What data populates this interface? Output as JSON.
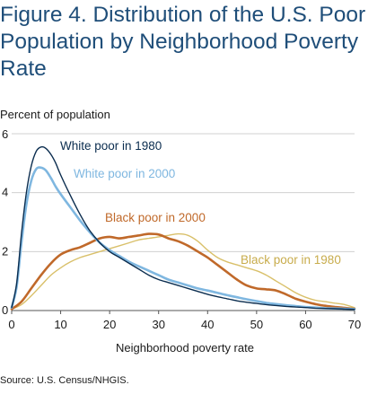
{
  "header": {
    "title": "Figure 4. Distribution of the U.S. Poor Population by Neighborhood Poverty Rate",
    "source": "Source:  U.S. Census/NHGIS."
  },
  "chart_data": {
    "type": "line",
    "title": "Figure 4. Distribution of the U.S. Poor Population by Neighborhood Poverty Rate",
    "xlabel": "Neighborhood poverty rate",
    "ylabel": "Percent of population",
    "xlim": [
      0,
      70
    ],
    "ylim": [
      0,
      6
    ],
    "xticks": [
      0,
      10,
      20,
      30,
      40,
      50,
      60,
      70
    ],
    "yticks": [
      0,
      2,
      4,
      6
    ],
    "grid": "horizontal",
    "series": [
      {
        "name": "White poor in 1980",
        "color": "#0b2d4f",
        "x": [
          0,
          1,
          2,
          3,
          4,
          5,
          6,
          7,
          8,
          9,
          10,
          12,
          14,
          16,
          18,
          20,
          22,
          24,
          26,
          28,
          30,
          32,
          34,
          36,
          38,
          40,
          42,
          44,
          46,
          48,
          50,
          52,
          54,
          56,
          58,
          60,
          62,
          64,
          66,
          68,
          70
        ],
        "values": [
          0.1,
          0.9,
          2.6,
          4.0,
          4.9,
          5.4,
          5.55,
          5.5,
          5.3,
          5.0,
          4.6,
          3.9,
          3.25,
          2.7,
          2.3,
          2.0,
          1.8,
          1.6,
          1.4,
          1.2,
          1.05,
          0.95,
          0.85,
          0.75,
          0.65,
          0.55,
          0.47,
          0.4,
          0.33,
          0.28,
          0.24,
          0.2,
          0.17,
          0.14,
          0.12,
          0.1,
          0.08,
          0.07,
          0.06,
          0.05,
          0.04
        ]
      },
      {
        "name": "White poor in 2000",
        "color": "#7fb7e0",
        "x": [
          0,
          1,
          2,
          3,
          4,
          5,
          6,
          7,
          8,
          9,
          10,
          12,
          14,
          16,
          18,
          20,
          22,
          24,
          26,
          28,
          30,
          32,
          34,
          36,
          38,
          40,
          42,
          44,
          46,
          48,
          50,
          52,
          54,
          56,
          58,
          60,
          62,
          64,
          66,
          68,
          70
        ],
        "values": [
          0.1,
          0.8,
          2.3,
          3.6,
          4.4,
          4.8,
          4.85,
          4.75,
          4.5,
          4.2,
          3.95,
          3.5,
          3.05,
          2.65,
          2.3,
          2.05,
          1.85,
          1.65,
          1.5,
          1.35,
          1.2,
          1.05,
          0.95,
          0.85,
          0.75,
          0.68,
          0.6,
          0.52,
          0.45,
          0.38,
          0.32,
          0.26,
          0.22,
          0.18,
          0.15,
          0.12,
          0.1,
          0.08,
          0.07,
          0.06,
          0.05
        ]
      },
      {
        "name": "Black poor in 2000",
        "color": "#c0692a",
        "x": [
          0,
          2,
          4,
          6,
          8,
          10,
          12,
          14,
          16,
          18,
          20,
          22,
          24,
          26,
          28,
          30,
          32,
          34,
          36,
          38,
          40,
          42,
          44,
          46,
          48,
          50,
          52,
          54,
          56,
          58,
          60,
          62,
          64,
          66,
          68,
          70
        ],
        "values": [
          0.05,
          0.3,
          0.75,
          1.2,
          1.6,
          1.9,
          2.05,
          2.15,
          2.3,
          2.45,
          2.5,
          2.45,
          2.5,
          2.55,
          2.6,
          2.58,
          2.45,
          2.35,
          2.2,
          2.0,
          1.8,
          1.55,
          1.3,
          1.05,
          0.85,
          0.75,
          0.72,
          0.68,
          0.55,
          0.4,
          0.3,
          0.22,
          0.16,
          0.12,
          0.09,
          0.06
        ]
      },
      {
        "name": "Black poor in 1980",
        "color": "#d9c06a",
        "x": [
          0,
          2,
          4,
          6,
          8,
          10,
          12,
          14,
          16,
          18,
          20,
          22,
          24,
          26,
          28,
          30,
          32,
          34,
          36,
          38,
          40,
          42,
          44,
          46,
          48,
          50,
          52,
          54,
          56,
          58,
          60,
          62,
          64,
          66,
          68,
          70
        ],
        "values": [
          0.05,
          0.2,
          0.5,
          0.85,
          1.2,
          1.45,
          1.65,
          1.8,
          1.9,
          2.0,
          2.1,
          2.2,
          2.3,
          2.4,
          2.45,
          2.5,
          2.55,
          2.6,
          2.55,
          2.35,
          2.05,
          1.8,
          1.65,
          1.55,
          1.45,
          1.35,
          1.2,
          1.0,
          0.8,
          0.6,
          0.45,
          0.35,
          0.3,
          0.25,
          0.2,
          0.1
        ]
      }
    ]
  }
}
